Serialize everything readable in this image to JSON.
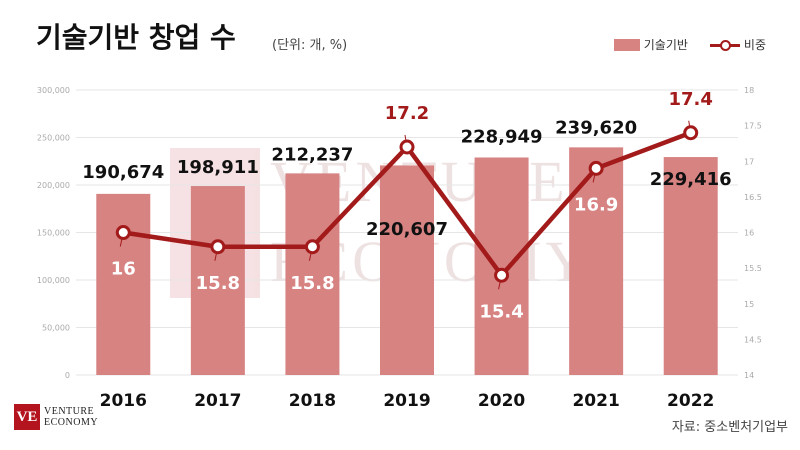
{
  "header": {
    "title": "기술기반 창업 수",
    "unit": "(단위: 개, %)"
  },
  "legend": {
    "bar_label": "기술기반",
    "line_label": "비중"
  },
  "footer": {
    "logo_mark": "VE",
    "logo_line1": "VENTURE",
    "logo_line2": "ECONOMY",
    "source": "자료: 중소벤처기업부"
  },
  "colors": {
    "bar": "#d68382",
    "line": "#a31a1a",
    "label_on_line": "#a31a1a",
    "year_label": "#111111"
  },
  "chart_data": {
    "type": "bar+line",
    "categories": [
      "2016",
      "2017",
      "2018",
      "2019",
      "2020",
      "2021",
      "2022"
    ],
    "series": [
      {
        "name": "기술기반",
        "type": "bar",
        "axis": "left",
        "values": [
          190674,
          198911,
          212237,
          220607,
          228949,
          239620,
          229416
        ],
        "labels": [
          "190,674",
          "198,911",
          "212,237",
          "220,607",
          "228,949",
          "239,620",
          "229,416"
        ]
      },
      {
        "name": "비중",
        "type": "line",
        "axis": "right",
        "values": [
          16,
          15.8,
          15.8,
          17.2,
          15.4,
          16.9,
          17.4
        ],
        "labels": [
          "16",
          "15.8",
          "15.8",
          "17.2",
          "15.4",
          "16.9",
          "17.4"
        ]
      }
    ],
    "y_left": {
      "min": 0,
      "max": 300000,
      "ticks": [
        0,
        50000,
        100000,
        150000,
        200000,
        250000,
        300000
      ],
      "tick_labels": [
        "0",
        "50,000",
        "100,000",
        "150,000",
        "200,000",
        "250,000",
        "300,000"
      ]
    },
    "y_right": {
      "min": 14,
      "max": 18,
      "ticks": [
        14,
        14.5,
        15,
        15.5,
        16,
        16.5,
        17,
        17.5,
        18
      ],
      "tick_labels": [
        "14",
        "14.5",
        "15",
        "15.5",
        "16",
        "16.5",
        "17",
        "17.5",
        "18"
      ]
    },
    "grid": true,
    "legend_position": "top-right"
  }
}
